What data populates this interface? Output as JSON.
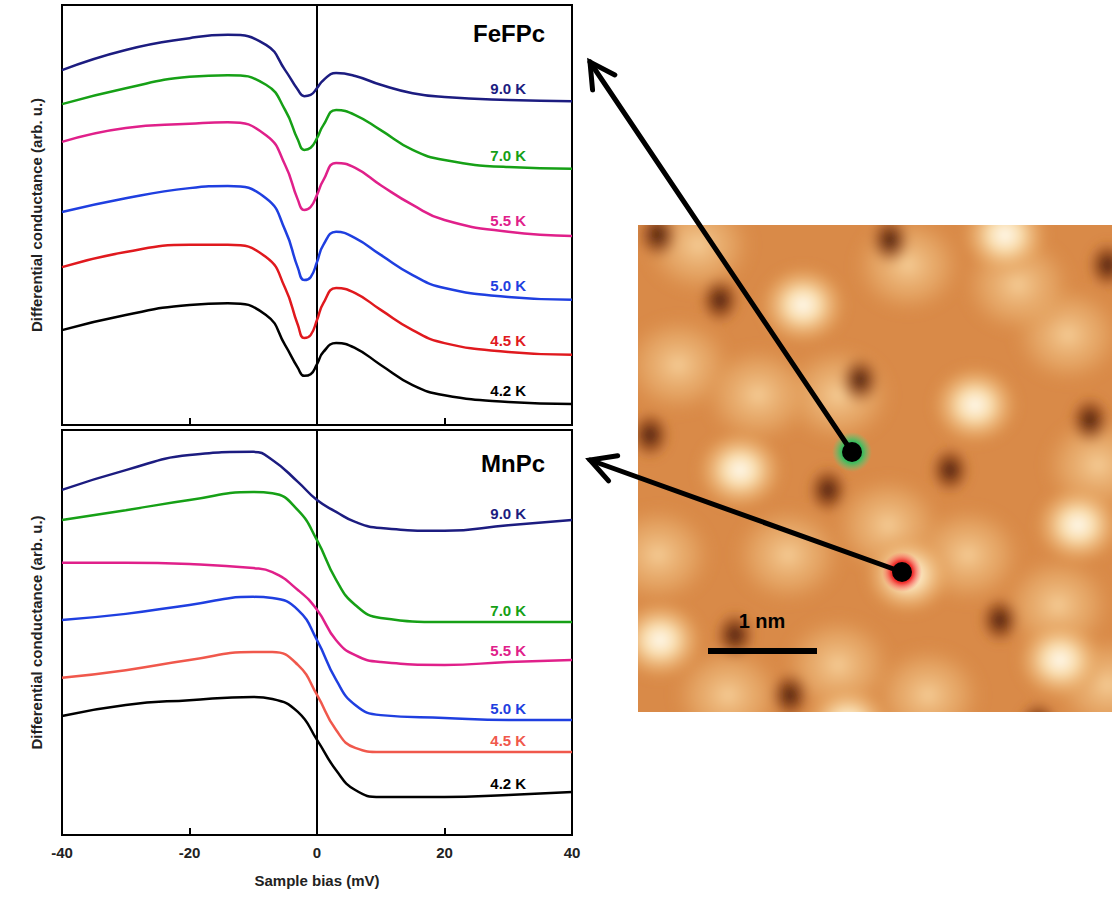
{
  "chart_data": [
    {
      "type": "line",
      "title": "FeFPc",
      "ylabel": "Differential conductance (arb. u.)",
      "xlim": [
        -40,
        40
      ],
      "xticks": [
        -40,
        -20,
        0,
        20,
        40
      ],
      "ylim": [
        0,
        10
      ],
      "tick_labels": false,
      "grid": false,
      "x": [
        -40,
        -30,
        -20,
        -14,
        -8,
        -5,
        -3,
        -2,
        -1,
        0,
        1,
        3,
        6,
        10,
        15,
        20,
        30,
        40
      ],
      "series": [
        {
          "name": "9.0 K",
          "color": "#1c1c80",
          "values": [
            8.45,
            8.93,
            9.21,
            9.29,
            9.05,
            8.45,
            7.98,
            7.83,
            7.86,
            8.02,
            8.21,
            8.38,
            8.31,
            8.1,
            7.9,
            7.81,
            7.74,
            7.71
          ]
        },
        {
          "name": "7.0 K",
          "color": "#16a016",
          "values": [
            7.64,
            8.02,
            8.29,
            8.33,
            8.1,
            7.5,
            6.79,
            6.55,
            6.6,
            6.83,
            7.14,
            7.5,
            7.38,
            7.02,
            6.55,
            6.31,
            6.14,
            6.1
          ]
        },
        {
          "name": "5.5 K",
          "color": "#e0208a",
          "values": [
            6.74,
            7.07,
            7.17,
            7.21,
            6.9,
            6.19,
            5.36,
            5.12,
            5.19,
            5.48,
            5.83,
            6.24,
            6.12,
            5.71,
            5.24,
            4.88,
            4.6,
            4.5
          ]
        },
        {
          "name": "5.0 K",
          "color": "#1f3fe0",
          "values": [
            5.07,
            5.4,
            5.64,
            5.69,
            5.4,
            4.64,
            3.74,
            3.45,
            3.52,
            3.88,
            4.29,
            4.6,
            4.45,
            4.05,
            3.57,
            3.26,
            3.05,
            2.98
          ]
        },
        {
          "name": "4.5 K",
          "color": "#e0191e",
          "values": [
            3.76,
            4.12,
            4.29,
            4.29,
            4.0,
            3.26,
            2.38,
            2.07,
            2.14,
            2.5,
            2.9,
            3.26,
            3.14,
            2.74,
            2.26,
            1.95,
            1.74,
            1.67
          ]
        },
        {
          "name": "4.2 K",
          "color": "#000000",
          "values": [
            2.26,
            2.62,
            2.86,
            2.9,
            2.62,
            1.9,
            1.36,
            1.17,
            1.21,
            1.45,
            1.74,
            1.95,
            1.83,
            1.43,
            0.95,
            0.71,
            0.55,
            0.5
          ]
        }
      ]
    },
    {
      "type": "line",
      "title": "MnPc",
      "ylabel": "Differential conductance (arb. u.)",
      "xlabel": "Sample bias (mV)",
      "xlim": [
        -40,
        40
      ],
      "xticks": [
        -40,
        -20,
        0,
        20,
        40
      ],
      "ylim": [
        0,
        10
      ],
      "tick_labels": "x",
      "grid": false,
      "x": [
        -40,
        -30,
        -20,
        -10,
        -7,
        -3,
        0,
        3,
        6,
        10,
        20,
        30,
        40
      ],
      "series": [
        {
          "name": "9.0 K",
          "color": "#1c1c80",
          "values": [
            8.52,
            9.01,
            9.38,
            9.46,
            9.26,
            8.72,
            8.27,
            7.98,
            7.73,
            7.58,
            7.51,
            7.65,
            7.78
          ]
        },
        {
          "name": "7.0 K",
          "color": "#16a016",
          "values": [
            7.78,
            8.02,
            8.27,
            8.47,
            8.44,
            8.02,
            7.28,
            6.3,
            5.68,
            5.36,
            5.26,
            5.26,
            5.26
          ]
        },
        {
          "name": "5.5 K",
          "color": "#e0208a",
          "values": [
            6.72,
            6.72,
            6.69,
            6.59,
            6.49,
            6.05,
            5.56,
            4.81,
            4.44,
            4.27,
            4.2,
            4.27,
            4.32
          ]
        },
        {
          "name": "5.0 K",
          "color": "#1f3fe0",
          "values": [
            5.31,
            5.46,
            5.68,
            5.88,
            5.85,
            5.56,
            4.81,
            3.83,
            3.21,
            2.96,
            2.89,
            2.84,
            2.84
          ]
        },
        {
          "name": "4.5 K",
          "color": "#f0584c",
          "values": [
            3.88,
            4.07,
            4.32,
            4.52,
            4.52,
            4.2,
            3.46,
            2.59,
            2.15,
            2.05,
            2.05,
            2.05,
            2.05
          ]
        },
        {
          "name": "4.2 K",
          "color": "#000000",
          "values": [
            2.94,
            3.21,
            3.33,
            3.41,
            3.36,
            3.04,
            2.35,
            1.6,
            1.11,
            0.94,
            0.94,
            0.99,
            1.06
          ]
        }
      ]
    }
  ],
  "image": {
    "scale_bar": "1 nm"
  }
}
